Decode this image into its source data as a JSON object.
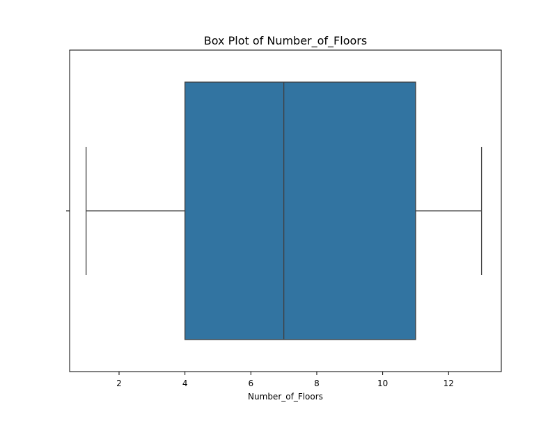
{
  "chart_data": {
    "type": "box",
    "title": "Box Plot of Number_of_Floors",
    "xlabel": "Number_of_Floors",
    "ylabel": "",
    "orientation": "horizontal",
    "xlim": [
      0.5,
      13.6
    ],
    "xticks": [
      2,
      4,
      6,
      8,
      10,
      12
    ],
    "xtick_labels": [
      "2",
      "4",
      "6",
      "8",
      "10",
      "12"
    ],
    "grid": false,
    "legend": "none",
    "box": {
      "whisker_low": 1,
      "q1": 4,
      "median": 7,
      "q3": 11,
      "whisker_high": 13
    },
    "colors": {
      "box_fill": "#3274a1",
      "line": "#3f3f3f",
      "axis": "#000000"
    }
  }
}
